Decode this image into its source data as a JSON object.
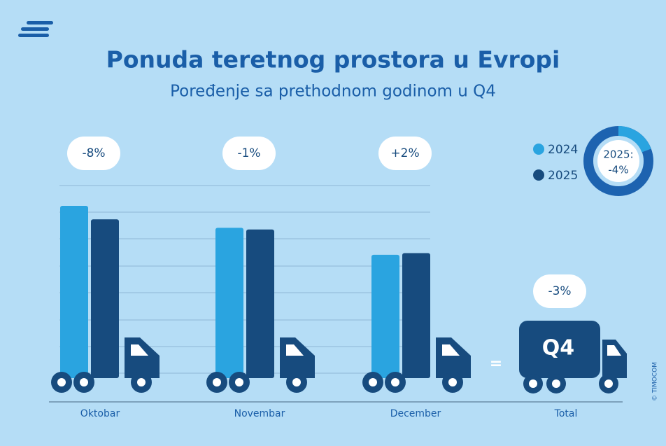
{
  "chart_data": {
    "type": "bar",
    "title": "Ponuda teretnog prostora u Evropi",
    "subtitle": "Poređenje sa prethodnom godinom u Q4",
    "categories": [
      "Oktobar",
      "Novembar",
      "December"
    ],
    "series": [
      {
        "name": "2024",
        "color": "#2aa4e0",
        "values": [
          100,
          87,
          71
        ]
      },
      {
        "name": "2025",
        "color": "#174b7e",
        "values": [
          92,
          86,
          72
        ]
      }
    ],
    "ylim": [
      0,
      100
    ],
    "changes": [
      {
        "value": -8,
        "label": "-8%"
      },
      {
        "value": -1,
        "label": "-1%"
      },
      {
        "value": 2,
        "label": "+2%"
      }
    ],
    "total": {
      "category": "Total",
      "badge": "Q4",
      "change": {
        "value": -3,
        "label": "-3%"
      }
    },
    "donut": {
      "label": "2025:",
      "value": -4,
      "value_label": "-4%"
    },
    "copyright": "© TIMOCOM"
  }
}
